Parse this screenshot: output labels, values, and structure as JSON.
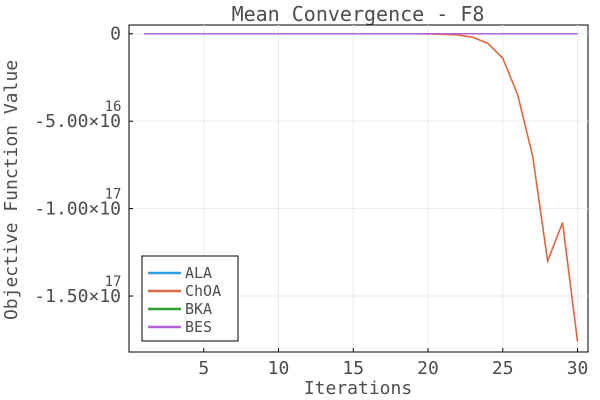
{
  "chart_data": {
    "type": "line",
    "title": "Mean Convergence - F8",
    "xlabel": "Iterations",
    "ylabel": "Objective Function Value",
    "xlim": [
      0,
      30.7
    ],
    "ylim": [
      -1.82e+17,
      5000000000000000.0
    ],
    "grid": true,
    "legend_position": "bottom-left",
    "x_ticks": [
      {
        "value": 5,
        "label": "5"
      },
      {
        "value": 10,
        "label": "10"
      },
      {
        "value": 15,
        "label": "15"
      },
      {
        "value": 20,
        "label": "20"
      },
      {
        "value": 25,
        "label": "25"
      },
      {
        "value": 30,
        "label": "30"
      }
    ],
    "y_ticks": [
      {
        "value": 0,
        "mantissa": "0",
        "exponent": ""
      },
      {
        "value": -5e+16,
        "mantissa": "-5.00×10",
        "exponent": "16"
      },
      {
        "value": -1e+17,
        "mantissa": "-1.00×10",
        "exponent": "17"
      },
      {
        "value": -1.5e+17,
        "mantissa": "-1.50×10",
        "exponent": "17"
      }
    ],
    "x": [
      1,
      2,
      3,
      4,
      5,
      6,
      7,
      8,
      9,
      10,
      11,
      12,
      13,
      14,
      15,
      16,
      17,
      18,
      19,
      20,
      21,
      22,
      23,
      24,
      25,
      26,
      27,
      28,
      29,
      30
    ],
    "series": [
      {
        "name": "ALA",
        "color": "#2e9be0",
        "values": [
          -10000000000000.0,
          -10000000000000.0,
          -10000000000000.0,
          -10000000000000.0,
          -10000000000000.0,
          -10000000000000.0,
          -10000000000000.0,
          -10000000000000.0,
          -10000000000000.0,
          -10000000000000.0,
          -10000000000000.0,
          -10000000000000.0,
          -10000000000000.0,
          -10000000000000.0,
          -10000000000000.0,
          -10000000000000.0,
          -10000000000000.0,
          -10000000000000.0,
          -10000000000000.0,
          -10000000000000.0,
          -10000000000000.0,
          -10000000000000.0,
          -10000000000000.0,
          -10000000000000.0,
          -10000000000000.0,
          -10000000000000.0,
          -10000000000000.0,
          -10000000000000.0,
          -10000000000000.0,
          -10000000000000.0
        ]
      },
      {
        "name": "ChOA",
        "color": "#e0663f",
        "values": [
          0,
          0,
          0,
          0,
          0,
          0,
          0,
          0,
          0,
          0,
          0,
          0,
          0,
          0,
          0,
          0,
          0,
          0,
          0,
          -100000000000000.0,
          -300000000000000.0,
          -700000000000000.0,
          -2000000000000000.0,
          -5500000000000000.0,
          -1.4e+16,
          -3.5e+16,
          -7e+16,
          -1.3e+17,
          -1.08e+17,
          -1.76e+17
        ]
      },
      {
        "name": "BKA",
        "color": "#2ca02c",
        "values": [
          -10000000000000.0,
          -10000000000000.0,
          -10000000000000.0,
          -10000000000000.0,
          -10000000000000.0,
          -10000000000000.0,
          -10000000000000.0,
          -10000000000000.0,
          -10000000000000.0,
          -10000000000000.0,
          -10000000000000.0,
          -10000000000000.0,
          -10000000000000.0,
          -10000000000000.0,
          -10000000000000.0,
          -10000000000000.0,
          -10000000000000.0,
          -10000000000000.0,
          -10000000000000.0,
          -10000000000000.0,
          -10000000000000.0,
          -10000000000000.0,
          -10000000000000.0,
          -10000000000000.0,
          -10000000000000.0,
          -10000000000000.0,
          -10000000000000.0,
          -10000000000000.0,
          -10000000000000.0,
          -10000000000000.0
        ]
      },
      {
        "name": "BES",
        "color": "#b260d6",
        "values": [
          -10000000000000.0,
          -10000000000000.0,
          -10000000000000.0,
          -10000000000000.0,
          -10000000000000.0,
          -10000000000000.0,
          -10000000000000.0,
          -10000000000000.0,
          -10000000000000.0,
          -10000000000000.0,
          -10000000000000.0,
          -10000000000000.0,
          -10000000000000.0,
          -10000000000000.0,
          -10000000000000.0,
          -10000000000000.0,
          -10000000000000.0,
          -10000000000000.0,
          -10000000000000.0,
          -10000000000000.0,
          -10000000000000.0,
          -10000000000000.0,
          -10000000000000.0,
          -10000000000000.0,
          -10000000000000.0,
          -10000000000000.0,
          -10000000000000.0,
          -10000000000000.0,
          -10000000000000.0,
          -10000000000000.0
        ]
      }
    ]
  }
}
